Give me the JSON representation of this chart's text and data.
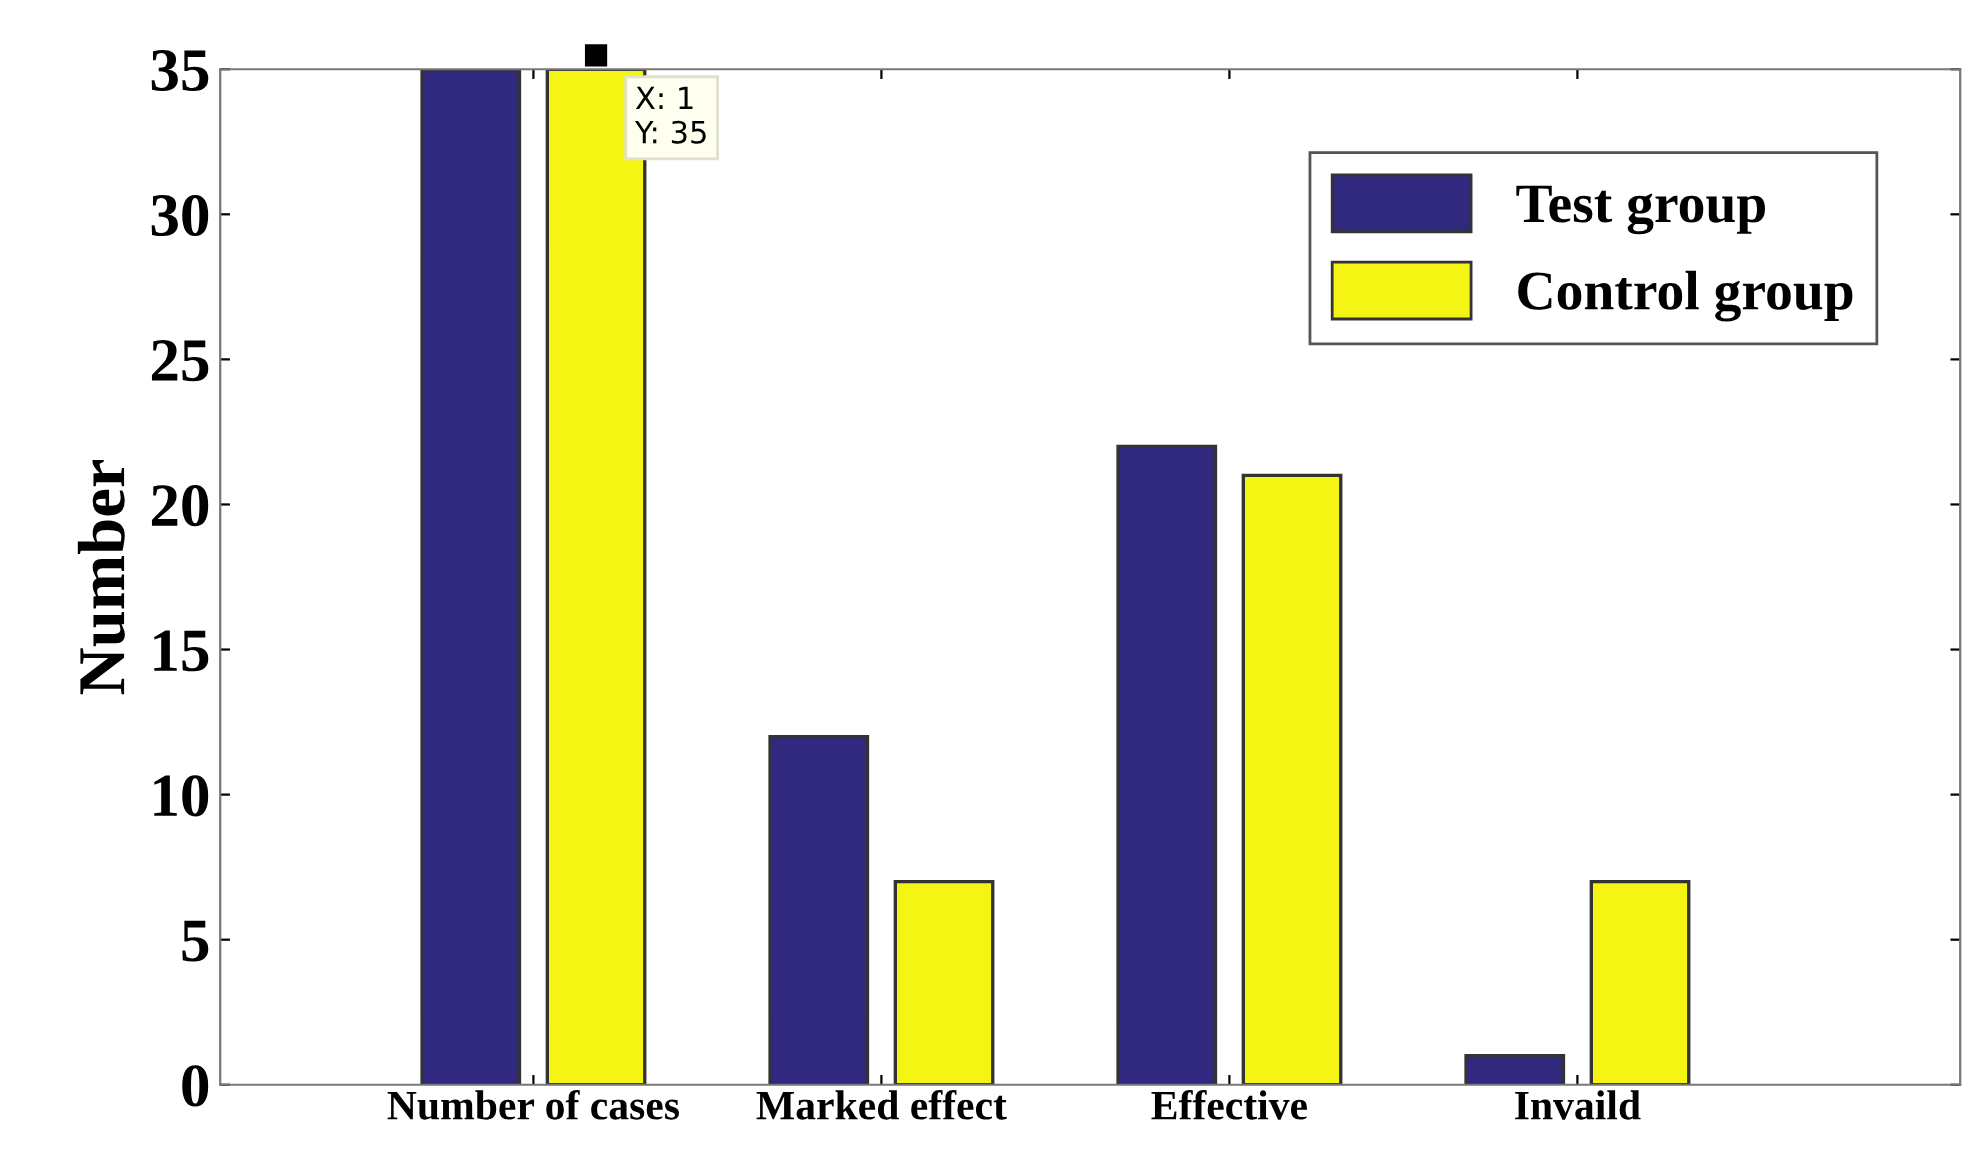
{
  "chart_data": {
    "type": "bar",
    "ylabel": "Number",
    "categories": [
      "Number of cases",
      "Marked effect",
      "Effective",
      "Invaild"
    ],
    "series": [
      {
        "name": "Test group",
        "color": "#31287f",
        "values": [
          35,
          12,
          22,
          1
        ]
      },
      {
        "name": "Control group",
        "color": "#f5f514",
        "values": [
          35,
          7,
          21,
          7
        ]
      }
    ],
    "ylim": [
      0,
      35
    ],
    "yticks": [
      0,
      5,
      10,
      15,
      20,
      25,
      30,
      35
    ],
    "grid": false,
    "legend": "top right",
    "annotations": [
      "X: 1\nY: 35"
    ]
  }
}
